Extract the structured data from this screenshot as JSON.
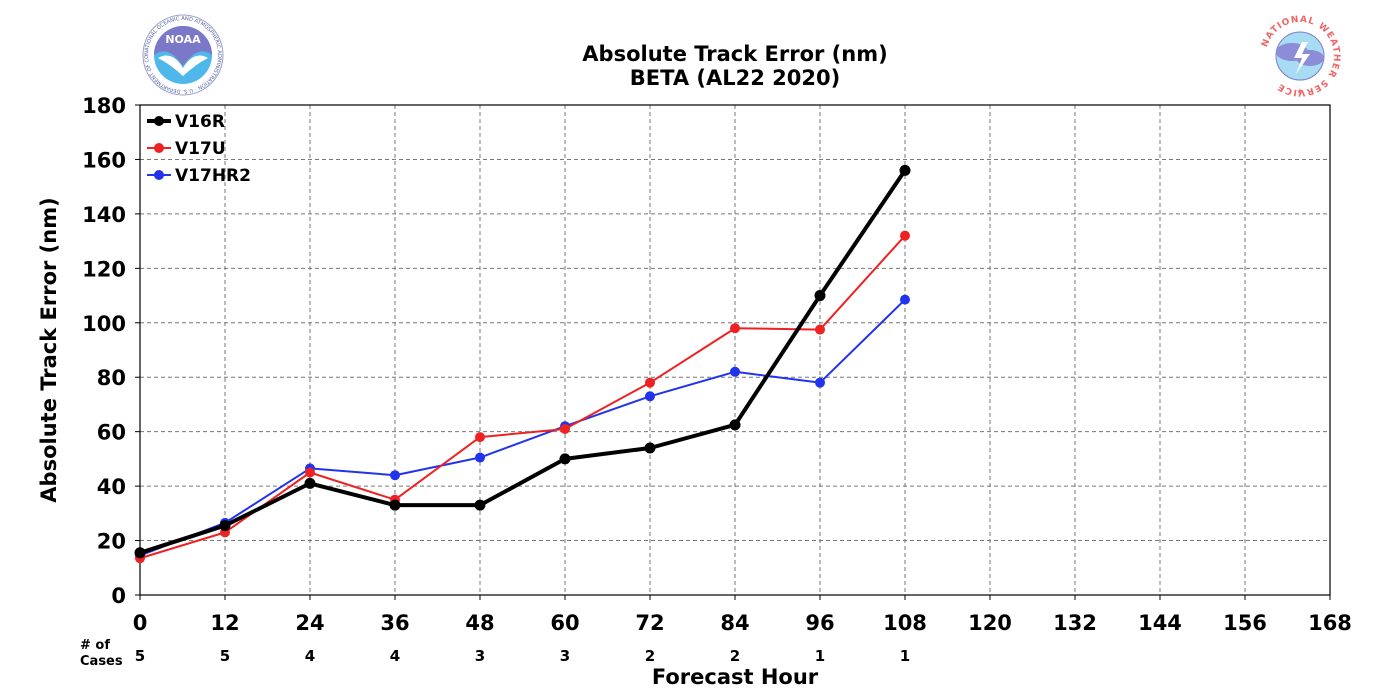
{
  "title": "Absolute Track Error (nm)",
  "subtitle": "BETA (AL22 2020)",
  "logos": {
    "left": {
      "text": "NOAA",
      "ring_text": "NATIONAL OCEANIC AND ATMOSPHERIC ADMINISTRATION · U.S. DEPARTMENT OF COMMERCE"
    },
    "right": {
      "ring_text": "NATIONAL WEATHER SERVICE"
    }
  },
  "cases_label": [
    "# of",
    "Cases"
  ],
  "chart_data": {
    "type": "line",
    "xlabel": "Forecast Hour",
    "ylabel": "Absolute Track Error (nm)",
    "xlim": [
      0,
      168
    ],
    "ylim": [
      0,
      180
    ],
    "x_ticks": [
      0,
      12,
      24,
      36,
      48,
      60,
      72,
      84,
      96,
      108,
      120,
      132,
      144,
      156,
      168
    ],
    "y_ticks": [
      0,
      20,
      40,
      60,
      80,
      100,
      120,
      140,
      160,
      180
    ],
    "grid": true,
    "legend_position": "top-left",
    "x": [
      0,
      12,
      24,
      36,
      48,
      60,
      72,
      84,
      96,
      108
    ],
    "series": [
      {
        "name": "V16R",
        "color": "#000000",
        "width": 4,
        "values": [
          15.5,
          25.5,
          41,
          33,
          33,
          50,
          54,
          62.5,
          110,
          156
        ]
      },
      {
        "name": "V17U",
        "color": "#ee2222",
        "width": 2,
        "values": [
          13.5,
          23,
          45,
          35,
          58,
          61,
          78,
          98,
          97.5,
          132
        ]
      },
      {
        "name": "V17HR2",
        "color": "#2233ee",
        "width": 2,
        "values": [
          14.5,
          26.5,
          46.5,
          44,
          50.5,
          62,
          73,
          82,
          78,
          108.5
        ]
      }
    ],
    "num_cases": [
      5,
      5,
      4,
      4,
      3,
      3,
      2,
      2,
      1,
      1
    ]
  }
}
